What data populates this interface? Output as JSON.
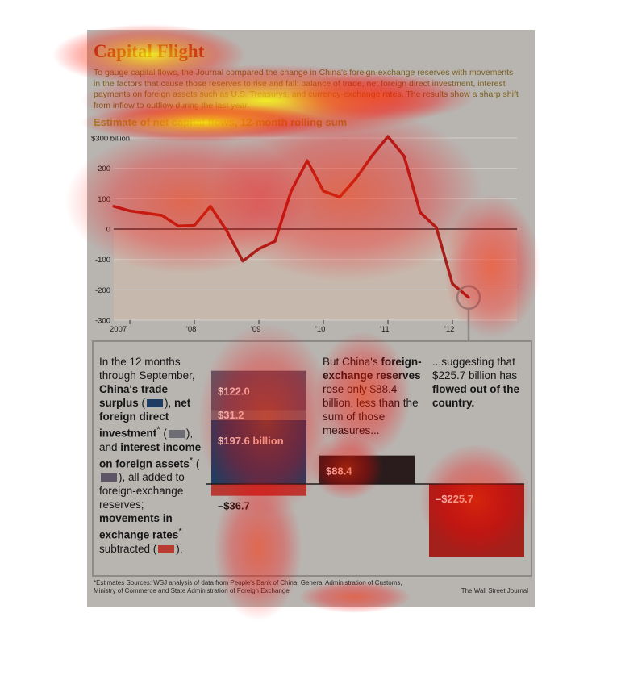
{
  "title": "Capital Flight",
  "intro": "To gauge capital flows, the Journal compared the change in China's foreign-exchange reserves with movements in the factors that cause those reserves to rise and fall: balance of trade, net foreign direct investment, interest payments on foreign assets such as U.S. Treasurys, and currency-exchange rates. The results show a sharp shift from inflow to outflow during the last year.",
  "subtitle": "Estimate of net capital flows, 12-month rolling sum",
  "colors": {
    "trade_surplus": "#1f3d62",
    "fdi": "#6e6d76",
    "interest_income": "#5e5566",
    "exchange_rates": "#b83a33",
    "reserves": "#2a1c1c",
    "outflow": "#a3201b",
    "line": "#a3201b"
  },
  "text": {
    "col1": {
      "p1": "In the 12 months through September,",
      "trade": "China's trade surplus",
      "fdi": "net foreign direct investment",
      "and": "and",
      "interest": "interest income on foreign assets",
      "added": "all added to foreign-exchange reserves;",
      "rates": "movements in exchange rates",
      "subtracted": "subtracted",
      "mark": "*"
    },
    "col2": {
      "p1": "But China's",
      "bold": "foreign-exchange reserves",
      "p2": "rose only $88.4 billion, less than the sum of those measures..."
    },
    "col3": {
      "p1": "...suggesting that $225.7 billion has",
      "bold": "flowed out of the country."
    }
  },
  "chart_data": [
    {
      "type": "line",
      "title": "Estimate of net capital flows, 12-month rolling sum",
      "ylabel": "$300 billion",
      "ylim": [
        -300,
        300
      ],
      "yticks": [
        -300,
        -200,
        -100,
        0,
        100,
        200,
        300
      ],
      "ytick_labels": [
        "-300",
        "-200",
        "-100",
        "0",
        "100",
        "200",
        "$300 billion"
      ],
      "xtick_labels": [
        "2007",
        "'08",
        "'09",
        "'10",
        "'11",
        "'12"
      ],
      "xtick_values": [
        2007.0,
        2008.0,
        2009.0,
        2010.0,
        2011.0,
        2012.0
      ],
      "xlim": [
        2006.75,
        2013.0
      ],
      "grid": true,
      "series": [
        {
          "x": [
            2006.75,
            2007.0,
            2007.5,
            2007.75,
            2008.0,
            2008.25,
            2008.5,
            2008.75,
            2009.0,
            2009.25,
            2009.5,
            2009.75,
            2010.0,
            2010.25,
            2010.5,
            2010.75,
            2011.0,
            2011.25,
            2011.5,
            2011.75,
            2012.0,
            2012.25,
            2012.5,
            2012.75
          ],
          "values": [
            75,
            60,
            45,
            10,
            12,
            75,
            -5,
            -105,
            -65,
            -40,
            125,
            225,
            125,
            105,
            165,
            240,
            305,
            240,
            55,
            5,
            -180,
            -225,
            null,
            null
          ]
        }
      ]
    },
    {
      "type": "bar",
      "title": "",
      "bars": [
        {
          "label": "$197.6 billion",
          "value": 197.6,
          "color_key": "trade_surplus",
          "group": "factors"
        },
        {
          "label": "$31.2",
          "value": 31.2,
          "color_key": "fdi",
          "group": "factors"
        },
        {
          "label": "$122.0",
          "value": 122.0,
          "color_key": "interest_income",
          "group": "factors"
        },
        {
          "label": "–$36.7",
          "value": -36.7,
          "color_key": "exchange_rates",
          "group": "factors"
        },
        {
          "label": "$88.4",
          "value": 88.4,
          "color_key": "reserves",
          "group": "reserves"
        },
        {
          "label": "–$225.7",
          "value": -225.7,
          "color_key": "outflow",
          "group": "outflow"
        }
      ]
    }
  ],
  "footnote": "*Estimates   Sources: WSJ analysis of data from People's Bank of China, General Administration of Customs, Ministry of Commerce and State Administration of Foreign Exchange",
  "credit": "The Wall Street Journal"
}
